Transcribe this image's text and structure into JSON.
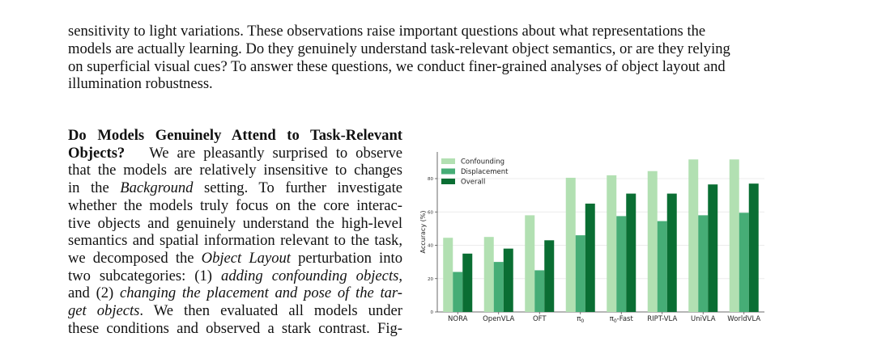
{
  "intro_lines": [
    "sensitivity to light variations. These observations raise important questions about what representations the",
    "models are actually learning. Do they genuinely understand task-relevant object semantics, or are they relying",
    "on superficial visual cues? To answer these questions, we conduct finer-grained analyses of object layout and",
    "illumination robustness."
  ],
  "section": {
    "heading_line1": "Do Models Genuinely Attend to Task-Relevant",
    "heading_line2": "Objects?",
    "line1_rest": "We are pleasantly surprised to observe",
    "line2": "that the models are relatively insensitive to changes",
    "line3_pre": "in the ",
    "line3_em": "Background",
    "line3_post": " setting.  To further investigate",
    "line4": "whether the models truly focus on the core interac-",
    "line5": "tive objects and genuinely understand the high-level",
    "line6": "semantics and spatial information relevant to the task,",
    "line7_pre": "we decomposed the ",
    "line7_em": "Object Layout",
    "line7_post": " perturbation into",
    "line8_pre": "two subcategories: (1) ",
    "line8_em": "adding confounding objects",
    "line8_post": ",",
    "line9_pre": "and (2) ",
    "line9_em": "changing the placement and pose of the tar-",
    "line10_em": "get objects",
    "line10_post": ".  We then evaluated all models under",
    "line11": "these conditions and observed a stark contrast. Fig-"
  },
  "chart_data": {
    "type": "bar",
    "categories": [
      "NORA",
      "OpenVLA",
      "OFT",
      "π0",
      "π0-Fast",
      "RIPT-VLA",
      "UniVLA",
      "WorldVLA"
    ],
    "series": [
      {
        "name": "Confounding",
        "color": "#b2e0b2",
        "values": [
          44.5,
          45,
          58,
          80.5,
          82,
          84.5,
          91.5,
          91.5
        ]
      },
      {
        "name": "Displacement",
        "color": "#46ad76",
        "values": [
          24,
          30,
          25,
          46,
          57.5,
          54.5,
          58,
          59.5
        ]
      },
      {
        "name": "Overall",
        "color": "#0a6e33",
        "values": [
          35,
          38,
          43,
          65,
          71,
          71,
          76.5,
          77
        ]
      }
    ],
    "ylabel": "Accuracy (%)",
    "xlabel": "",
    "yticks": [
      0,
      20,
      40,
      60,
      80
    ],
    "ylim": [
      0,
      96
    ],
    "grid": true,
    "legend": "top-left"
  }
}
